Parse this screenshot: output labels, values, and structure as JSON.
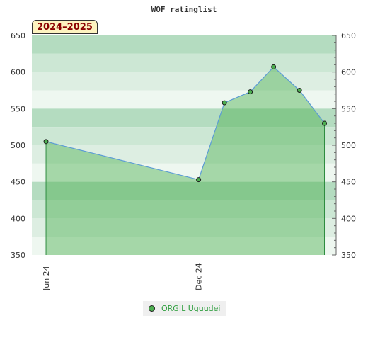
{
  "chart_data": {
    "type": "area",
    "title": "WOF ratinglist",
    "season_label": "2024–2025",
    "x": [
      "2024-06",
      "2024-12",
      "2025-01",
      "2025-02",
      "2025-03",
      "2025-04",
      "2025-05"
    ],
    "x_tick_labels": [
      {
        "x": "2024-06",
        "label": "Jun 24"
      },
      {
        "x": "2024-12",
        "label": "Dec 24"
      }
    ],
    "series": [
      {
        "name": "ORGIL Uguudei",
        "values": [
          505,
          453,
          558,
          573,
          607,
          575,
          530
        ]
      }
    ],
    "xlim": [
      "2024-05-15",
      "2025-05-15"
    ],
    "ylim": [
      350,
      650
    ],
    "y_ticks": [
      350,
      400,
      450,
      500,
      550,
      600,
      650
    ],
    "grid": false,
    "legend_position": "bottom"
  },
  "colors": {
    "band_dark": "#b4dcc0",
    "band_mid": "#cce7d4",
    "band_light": "#ddeee2",
    "band_lightest": "#eef7f0",
    "area_fill": "#4caf50",
    "line": "#5b9bd5",
    "marker": "#4caf50"
  }
}
